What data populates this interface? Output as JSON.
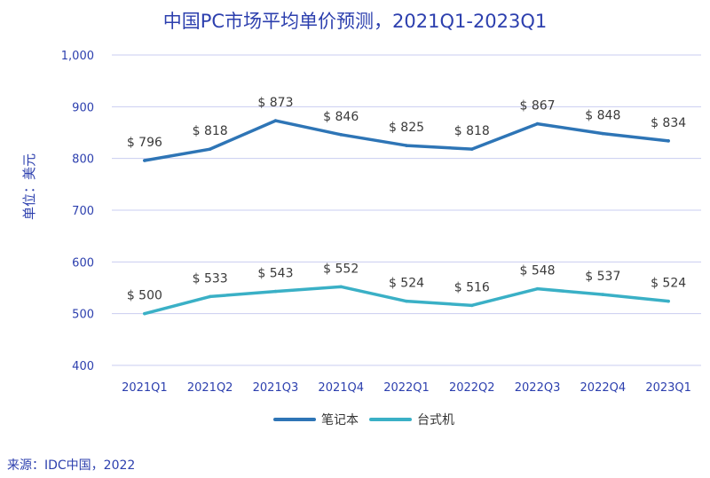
{
  "chart_data": {
    "type": "line",
    "title": "中国PC市场平均单价预测，2021Q1-2023Q1",
    "ylabel": "单位：美元",
    "xlabel": "",
    "categories": [
      "2021Q1",
      "2021Q2",
      "2021Q3",
      "2021Q4",
      "2022Q1",
      "2022Q2",
      "2022Q3",
      "2022Q4",
      "2023Q1"
    ],
    "series": [
      {
        "name": "笔记本",
        "color": "#2e75b6",
        "values": [
          796,
          818,
          873,
          846,
          825,
          818,
          867,
          848,
          834
        ],
        "labels": [
          "$ 796",
          "$ 818",
          "$ 873",
          "$ 846",
          "$ 825",
          "$ 818",
          "$ 867",
          "$ 848",
          "$ 834"
        ]
      },
      {
        "name": "台式机",
        "color": "#3ab0c6",
        "values": [
          500,
          533,
          543,
          552,
          524,
          516,
          548,
          537,
          524
        ],
        "labels": [
          "$ 500",
          "$ 533",
          "$ 543",
          "$ 552",
          "$ 524",
          "$ 516",
          "$ 548",
          "$ 537",
          "$ 524"
        ]
      }
    ],
    "ylim": [
      400,
      1000
    ],
    "yticks": [
      400,
      500,
      600,
      700,
      800,
      900,
      1000
    ],
    "ytick_labels": [
      "400",
      "500",
      "600",
      "700",
      "800",
      "900",
      "1,000"
    ],
    "grid": true,
    "legend": "bottom"
  },
  "source": "来源：IDC中国，2022"
}
